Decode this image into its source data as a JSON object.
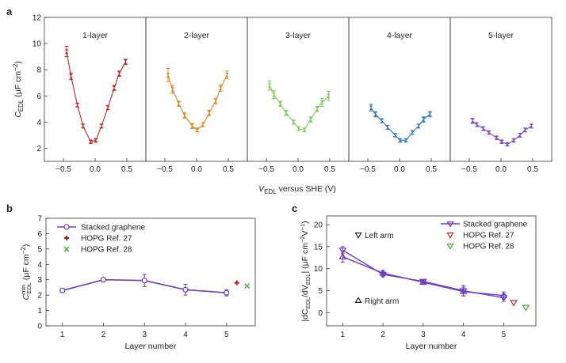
{
  "chart_data": [
    {
      "panel": "a",
      "type": "line",
      "ylabel": "C_EDL (μF cm⁻²)",
      "ylabel_main": "C",
      "ylabel_sub": "EDL",
      "ylabel_rest": " (μF cm",
      "ylabel_sup": "−2",
      "ylabel_close": ")",
      "xlabel": "V_EDL versus SHE (V)",
      "xlabel_main": "V",
      "xlabel_sub": "EDL",
      "xlabel_rest": " versus SHE (V)",
      "ylim": [
        1,
        12
      ],
      "yticks": [
        "2",
        "4",
        "6",
        "8",
        "10",
        "12"
      ],
      "xlim": [
        -0.8,
        0.8
      ],
      "xticks": [
        "−0.5",
        "0.0",
        "0.5"
      ],
      "xtick_values": [
        -0.5,
        0.0,
        0.5
      ],
      "subplots": [
        {
          "title": "1-layer",
          "color": "#c0282d",
          "x": [
            -0.45,
            -0.38,
            -0.28,
            -0.19,
            -0.07,
            0.01,
            0.1,
            0.2,
            0.3,
            0.38,
            0.48
          ],
          "y": [
            9.4,
            7.5,
            5.3,
            3.7,
            2.5,
            2.6,
            3.7,
            5.1,
            6.6,
            7.7,
            8.6
          ],
          "err": [
            0.4,
            0.25,
            0.15,
            0.15,
            0.1,
            0.1,
            0.15,
            0.15,
            0.2,
            0.2,
            0.2
          ]
        },
        {
          "title": "2-layer",
          "color": "#e08a1e",
          "x": [
            -0.45,
            -0.38,
            -0.28,
            -0.19,
            -0.07,
            0.01,
            0.1,
            0.2,
            0.3,
            0.38,
            0.48
          ],
          "y": [
            7.6,
            6.5,
            5.4,
            4.5,
            3.7,
            3.4,
            3.8,
            4.7,
            5.6,
            6.6,
            7.6
          ],
          "err": [
            0.5,
            0.3,
            0.2,
            0.2,
            0.2,
            0.15,
            0.15,
            0.2,
            0.2,
            0.25,
            0.3
          ]
        },
        {
          "title": "3-layer",
          "color": "#7ccc55",
          "x": [
            -0.45,
            -0.38,
            -0.28,
            -0.19,
            -0.07,
            0.01,
            0.1,
            0.2,
            0.3,
            0.38,
            0.48
          ],
          "y": [
            6.8,
            6.1,
            5.4,
            4.7,
            4.0,
            3.5,
            3.4,
            4.2,
            5.0,
            5.5,
            6.0
          ],
          "err": [
            0.35,
            0.3,
            0.2,
            0.2,
            0.15,
            0.15,
            0.15,
            0.2,
            0.2,
            0.3,
            0.35
          ]
        },
        {
          "title": "4-layer",
          "color": "#2f7cc4",
          "x": [
            -0.45,
            -0.38,
            -0.28,
            -0.19,
            -0.07,
            0.01,
            0.1,
            0.2,
            0.3,
            0.38,
            0.48
          ],
          "y": [
            5.1,
            4.6,
            4.1,
            3.6,
            3.0,
            2.6,
            2.6,
            3.2,
            3.7,
            4.2,
            4.6
          ],
          "err": [
            0.25,
            0.2,
            0.15,
            0.15,
            0.1,
            0.1,
            0.1,
            0.15,
            0.15,
            0.2,
            0.2
          ]
        },
        {
          "title": "5-layer",
          "color": "#7a4fc2",
          "x": [
            -0.45,
            -0.38,
            -0.28,
            -0.19,
            -0.07,
            0.01,
            0.1,
            0.2,
            0.3,
            0.38,
            0.48
          ],
          "y": [
            4.1,
            3.8,
            3.5,
            3.2,
            2.8,
            2.5,
            2.3,
            2.6,
            3.0,
            3.4,
            3.7
          ],
          "err": [
            0.2,
            0.15,
            0.15,
            0.1,
            0.1,
            0.1,
            0.1,
            0.1,
            0.15,
            0.15,
            0.15
          ]
        }
      ]
    },
    {
      "panel": "b",
      "type": "line",
      "xlabel": "Layer number",
      "ylabel": "C_EDL^min (μF cm⁻²)",
      "ylabel_main": "C",
      "ylabel_sup": "min",
      "ylabel_sub": "EDL",
      "ylabel_rest": " (μF cm",
      "ylabel_sup2": "−2",
      "ylabel_close": ")",
      "xlim": [
        0.6,
        5.7
      ],
      "ylim": [
        0,
        7
      ],
      "xticks": [
        "1",
        "2",
        "3",
        "4",
        "5"
      ],
      "yticks": [
        "0",
        "1",
        "2",
        "3",
        "4",
        "5",
        "6",
        "7"
      ],
      "series": [
        {
          "name": "Stacked graphene",
          "x": [
            1,
            2,
            3,
            4,
            5
          ],
          "y": [
            2.3,
            3.0,
            2.95,
            2.35,
            2.15
          ],
          "err": [
            0.12,
            0.12,
            0.4,
            0.35,
            0.2
          ],
          "color": "#6b3fc4",
          "marker": "circle"
        },
        {
          "name": "HOPG Ref. 27",
          "x": [
            5.25
          ],
          "y": [
            2.8
          ],
          "color": "#b01818",
          "marker": "plus"
        },
        {
          "name": "HOPG Ref. 28",
          "x": [
            5.5
          ],
          "y": [
            2.6
          ],
          "color": "#4aa83a",
          "marker": "cross"
        }
      ]
    },
    {
      "panel": "c",
      "type": "line",
      "xlabel": "Layer number",
      "ylabel": "|dC_EDL/dV_EDL| (μF cm⁻² V⁻¹)",
      "ylabel_text": "|dC",
      "ylabel_sub1": "EDL",
      "ylabel_mid": "/dV",
      "ylabel_sub2": "EDL",
      "ylabel_rest": "| (μF cm",
      "ylabel_sup1": "−2",
      "ylabel_v": "V",
      "ylabel_sup2": "−1",
      "ylabel_close": ")",
      "xlim": [
        0.6,
        5.8
      ],
      "ylim": [
        -3,
        22
      ],
      "xticks": [
        "1",
        "2",
        "3",
        "4",
        "5"
      ],
      "yticks": [
        "0",
        "5",
        "10",
        "15",
        "20"
      ],
      "annotations": [
        "Left arm",
        "Right arm"
      ],
      "series": [
        {
          "name": "Stacked graphene",
          "x": [
            1,
            2,
            3,
            4,
            5
          ],
          "y": [
            14.2,
            8.7,
            7.1,
            5.0,
            3.4
          ],
          "err": [
            0.8,
            0.5,
            0.5,
            1.2,
            0.8
          ],
          "color": "#6b3fc4",
          "marker": "triangle-down"
        },
        {
          "name": "",
          "x": [
            1,
            2,
            3,
            4,
            5
          ],
          "y": [
            12.7,
            9.0,
            6.9,
            4.8,
            3.9
          ],
          "err": [
            1.2,
            0.6,
            0.5,
            1.0,
            0.8
          ],
          "color": "#6b3fc4",
          "marker": "triangle-up"
        },
        {
          "name": "HOPG Ref. 27",
          "x": [
            5.25
          ],
          "y": [
            2.3
          ],
          "color": "#c0282d",
          "marker": "triangle-down"
        },
        {
          "name": "HOPG Ref. 28",
          "x": [
            5.55
          ],
          "y": [
            1.2
          ],
          "color": "#4aa83a",
          "marker": "triangle-down"
        }
      ]
    }
  ]
}
